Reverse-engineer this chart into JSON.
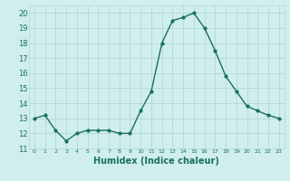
{
  "x": [
    0,
    1,
    2,
    3,
    4,
    5,
    6,
    7,
    8,
    9,
    10,
    11,
    12,
    13,
    14,
    15,
    16,
    17,
    18,
    19,
    20,
    21,
    22,
    23
  ],
  "y": [
    13,
    13.2,
    12.2,
    11.5,
    12,
    12.2,
    12.2,
    12.2,
    12,
    12,
    13.5,
    14.8,
    18,
    19.5,
    19.7,
    20,
    19,
    17.5,
    15.8,
    14.8,
    13.8,
    13.5,
    13.2,
    13
  ],
  "line_color": "#1a7060",
  "bg_color": "#d0eeee",
  "grid_color": "#b0d8d8",
  "xlabel": "Humidex (Indice chaleur)",
  "ylim": [
    11,
    20.5
  ],
  "xlim": [
    -0.5,
    23.5
  ],
  "yticks": [
    11,
    12,
    13,
    14,
    15,
    16,
    17,
    18,
    19,
    20
  ],
  "xticks": [
    0,
    1,
    2,
    3,
    4,
    5,
    6,
    7,
    8,
    9,
    10,
    11,
    12,
    13,
    14,
    15,
    16,
    17,
    18,
    19,
    20,
    21,
    22,
    23
  ],
  "marker": "o",
  "markersize": 2,
  "linewidth": 1.0,
  "fontsize_label": 7,
  "fontsize_ytick": 6,
  "fontsize_xtick": 4.5
}
